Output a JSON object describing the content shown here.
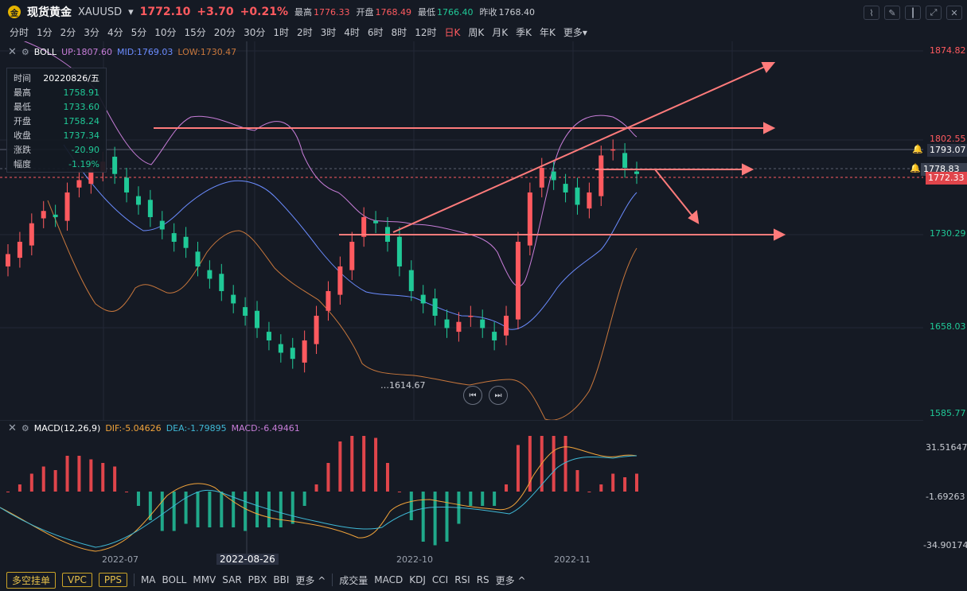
{
  "header": {
    "logo_glyph": "金",
    "title": "现货黄金",
    "symbol": "XAUUSD",
    "price": "1772.10",
    "change": "+3.70",
    "change_pct": "+0.21%",
    "high_label": "最高",
    "high": "1776.33",
    "open_label": "开盘",
    "open": "1768.49",
    "low_label": "最低",
    "low": "1766.40",
    "prev_label": "昨收",
    "prev": "1768.40"
  },
  "periods": [
    "分时",
    "1分",
    "2分",
    "3分",
    "4分",
    "5分",
    "10分",
    "15分",
    "20分",
    "30分",
    "1时",
    "2时",
    "3时",
    "4时",
    "6时",
    "8时",
    "12时",
    "日K",
    "周K",
    "月K",
    "季K",
    "年K",
    "更多"
  ],
  "active_period": "日K",
  "boll": {
    "name": "BOLL",
    "up": "UP:1807.60",
    "mid": "MID:1769.03",
    "low": "LOW:1730.47"
  },
  "info": {
    "rows": [
      {
        "k": "时间",
        "v": "20220826/五",
        "c": "#ffffff"
      },
      {
        "k": "最高",
        "v": "1758.91",
        "c": "#20c997"
      },
      {
        "k": "最低",
        "v": "1733.60",
        "c": "#20c997"
      },
      {
        "k": "开盘",
        "v": "1758.24",
        "c": "#20c997"
      },
      {
        "k": "收盘",
        "v": "1737.34",
        "c": "#20c997"
      },
      {
        "k": "涨跌",
        "v": "-20.90",
        "c": "#20c997"
      },
      {
        "k": "幅度",
        "v": "-1.19%",
        "c": "#20c997"
      }
    ]
  },
  "price_axis": {
    "labels": [
      "1874.82",
      "1802.55",
      "1730.29",
      "1658.03",
      "1585.77"
    ],
    "tag_current": "1793.07",
    "tag_cross": "1778.83",
    "tag_last": "1772.33"
  },
  "low_annotation": "1614.67",
  "macd": {
    "name": "MACD(12,26,9)",
    "dif": "DIF:-5.04626",
    "dea": "DEA:-1.79895",
    "macd": "MACD:-6.49461",
    "axis": [
      "31.51647",
      "-1.69263",
      "-34.90174"
    ]
  },
  "dates": {
    "ticks": [
      "2022-07",
      "2022-10",
      "2022-11"
    ],
    "active": "2022-08-26"
  },
  "bottom": {
    "buttons": [
      "多空挂单",
      "VPC",
      "PPS"
    ],
    "main_inds": [
      "MA",
      "BOLL",
      "MMV",
      "SAR",
      "PBX",
      "BBI",
      "更多"
    ],
    "sub_inds": [
      "成交量",
      "MACD",
      "KDJ",
      "CCI",
      "RSI",
      "RS",
      "更多"
    ]
  },
  "colors": {
    "up": "#ff5a5f",
    "down": "#20c997",
    "boll_up": "#c77dd8",
    "boll_mid": "#6b8cff",
    "boll_low": "#c8773c",
    "annotation": "#ff7b7b"
  },
  "chart_data": {
    "type": "candlestick",
    "series_close": [
      1710,
      1720,
      1735,
      1745,
      1740,
      1760,
      1770,
      1780,
      1785,
      1775,
      1760,
      1750,
      1740,
      1730,
      1720,
      1715,
      1700,
      1690,
      1680,
      1670,
      1660,
      1650,
      1640,
      1630,
      1625,
      1640,
      1660,
      1680,
      1700,
      1720,
      1740,
      1735,
      1720,
      1700,
      1680,
      1670,
      1660,
      1650,
      1655,
      1660,
      1650,
      1640,
      1660,
      1720,
      1760,
      1780,
      1770,
      1760,
      1750,
      1760,
      1790,
      1795,
      1780,
      1775
    ]
  }
}
